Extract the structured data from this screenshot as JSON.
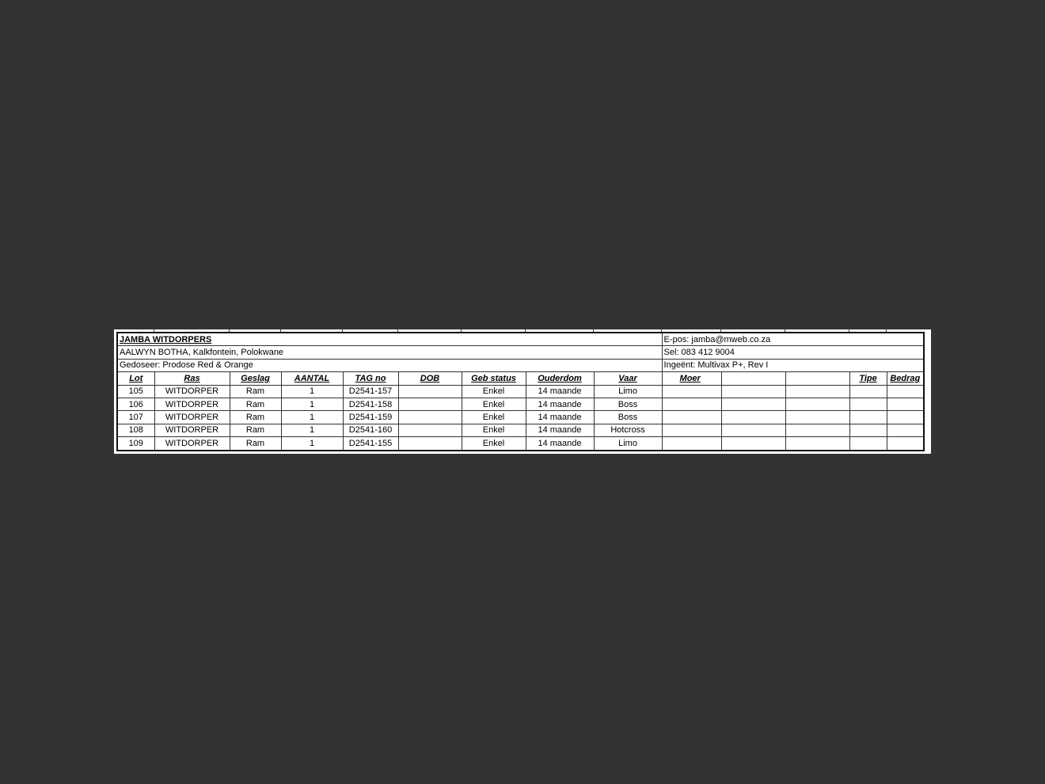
{
  "header": {
    "title": "JAMBA WITDORPERS",
    "owner": "AALWYN BOTHA, Kalkfontein, Polokwane",
    "dosed": "Gedoseer: Prodose Red & Orange",
    "email": "E-pos: jamba@mweb.co.za",
    "phone": "Sel: 083 412 9004",
    "vaccinated": "Ingeënt: Multivax P+, Rev I"
  },
  "table": {
    "columns": [
      "Lot",
      "Ras",
      "Geslag",
      "AANTAL",
      "TAG no",
      "DOB",
      "Geb status",
      "Ouderdom",
      "Vaar",
      "Moer",
      "",
      "",
      "Tipe",
      "Bedrag"
    ],
    "rows": [
      [
        "105",
        "WITDORPER",
        "Ram",
        "1",
        "D2541-157",
        "",
        "Enkel",
        "14 maande",
        "Limo",
        "",
        "",
        "",
        "",
        ""
      ],
      [
        "106",
        "WITDORPER",
        "Ram",
        "1",
        "D2541-158",
        "",
        "Enkel",
        "14 maande",
        "Boss",
        "",
        "",
        "",
        "",
        ""
      ],
      [
        "107",
        "WITDORPER",
        "Ram",
        "1",
        "D2541-159",
        "",
        "Enkel",
        "14 maande",
        "Boss",
        "",
        "",
        "",
        "",
        ""
      ],
      [
        "108",
        "WITDORPER",
        "Ram",
        "1",
        "D2541-160",
        "",
        "Enkel",
        "14 maande",
        "Hotcross",
        "",
        "",
        "",
        "",
        ""
      ],
      [
        "109",
        "WITDORPER",
        "Ram",
        "1",
        "D2541-155",
        "",
        "Enkel",
        "14 maande",
        "Limo",
        "",
        "",
        "",
        "",
        ""
      ]
    ]
  }
}
